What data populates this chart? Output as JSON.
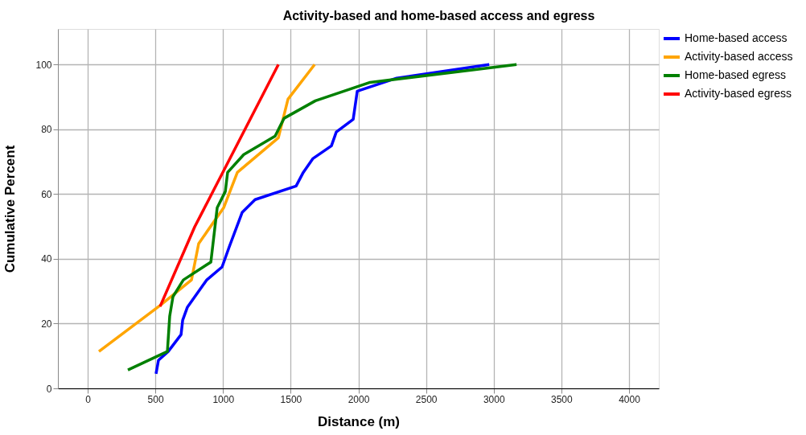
{
  "chart_data": {
    "type": "line",
    "title": "Activity-based and home-based access and egress",
    "xlabel": "Distance (m)",
    "ylabel": "Cumulative Percent",
    "xlim": [
      -220,
      4220
    ],
    "xticks": [
      0,
      500,
      1000,
      1500,
      2000,
      2500,
      3000,
      3500,
      4000
    ],
    "ylim": [
      0,
      111
    ],
    "yticks": [
      0,
      20,
      40,
      60,
      80,
      100
    ],
    "grid": true,
    "legend": "top right",
    "marker": "none",
    "line_style": "solid",
    "series": [
      {
        "name": "Home-based access",
        "color": "#0000ff",
        "x": [
          505,
          523,
          595,
          690,
          702,
          737,
          880,
          993,
          1046,
          1141,
          1237,
          1540,
          1593,
          1665,
          1801,
          1837,
          1962,
          1992,
          2283,
          2967
        ],
        "values": [
          4.5,
          8.7,
          11.4,
          16.6,
          21.1,
          25.1,
          33.5,
          37.5,
          43.7,
          54.3,
          58.3,
          62.5,
          66.7,
          71,
          74.9,
          79.2,
          83.1,
          91.8,
          95.8,
          100
        ]
      },
      {
        "name": "Activity-based access",
        "color": "#ffa500",
        "x": [
          83,
          535,
          767,
          820,
          1005,
          1106,
          1409,
          1480,
          1677
        ],
        "values": [
          11.4,
          25.6,
          33.5,
          44.7,
          55.8,
          66.7,
          77.4,
          89.3,
          100
        ]
      },
      {
        "name": "Home-based egress",
        "color": "#008000",
        "x": [
          297,
          589,
          606,
          630,
          707,
          910,
          957,
          1017,
          1034,
          1153,
          1385,
          1451,
          1682,
          2087,
          3169
        ],
        "values": [
          5.7,
          11.4,
          22.3,
          28.3,
          33.5,
          39,
          55.8,
          60.8,
          66.7,
          72.2,
          77.9,
          83.4,
          88.8,
          94.5,
          100
        ]
      },
      {
        "name": "Activity-based egress",
        "color": "#ff0000",
        "x": [
          535,
          791,
          1409
        ],
        "values": [
          25.3,
          49.9,
          100
        ]
      }
    ]
  }
}
